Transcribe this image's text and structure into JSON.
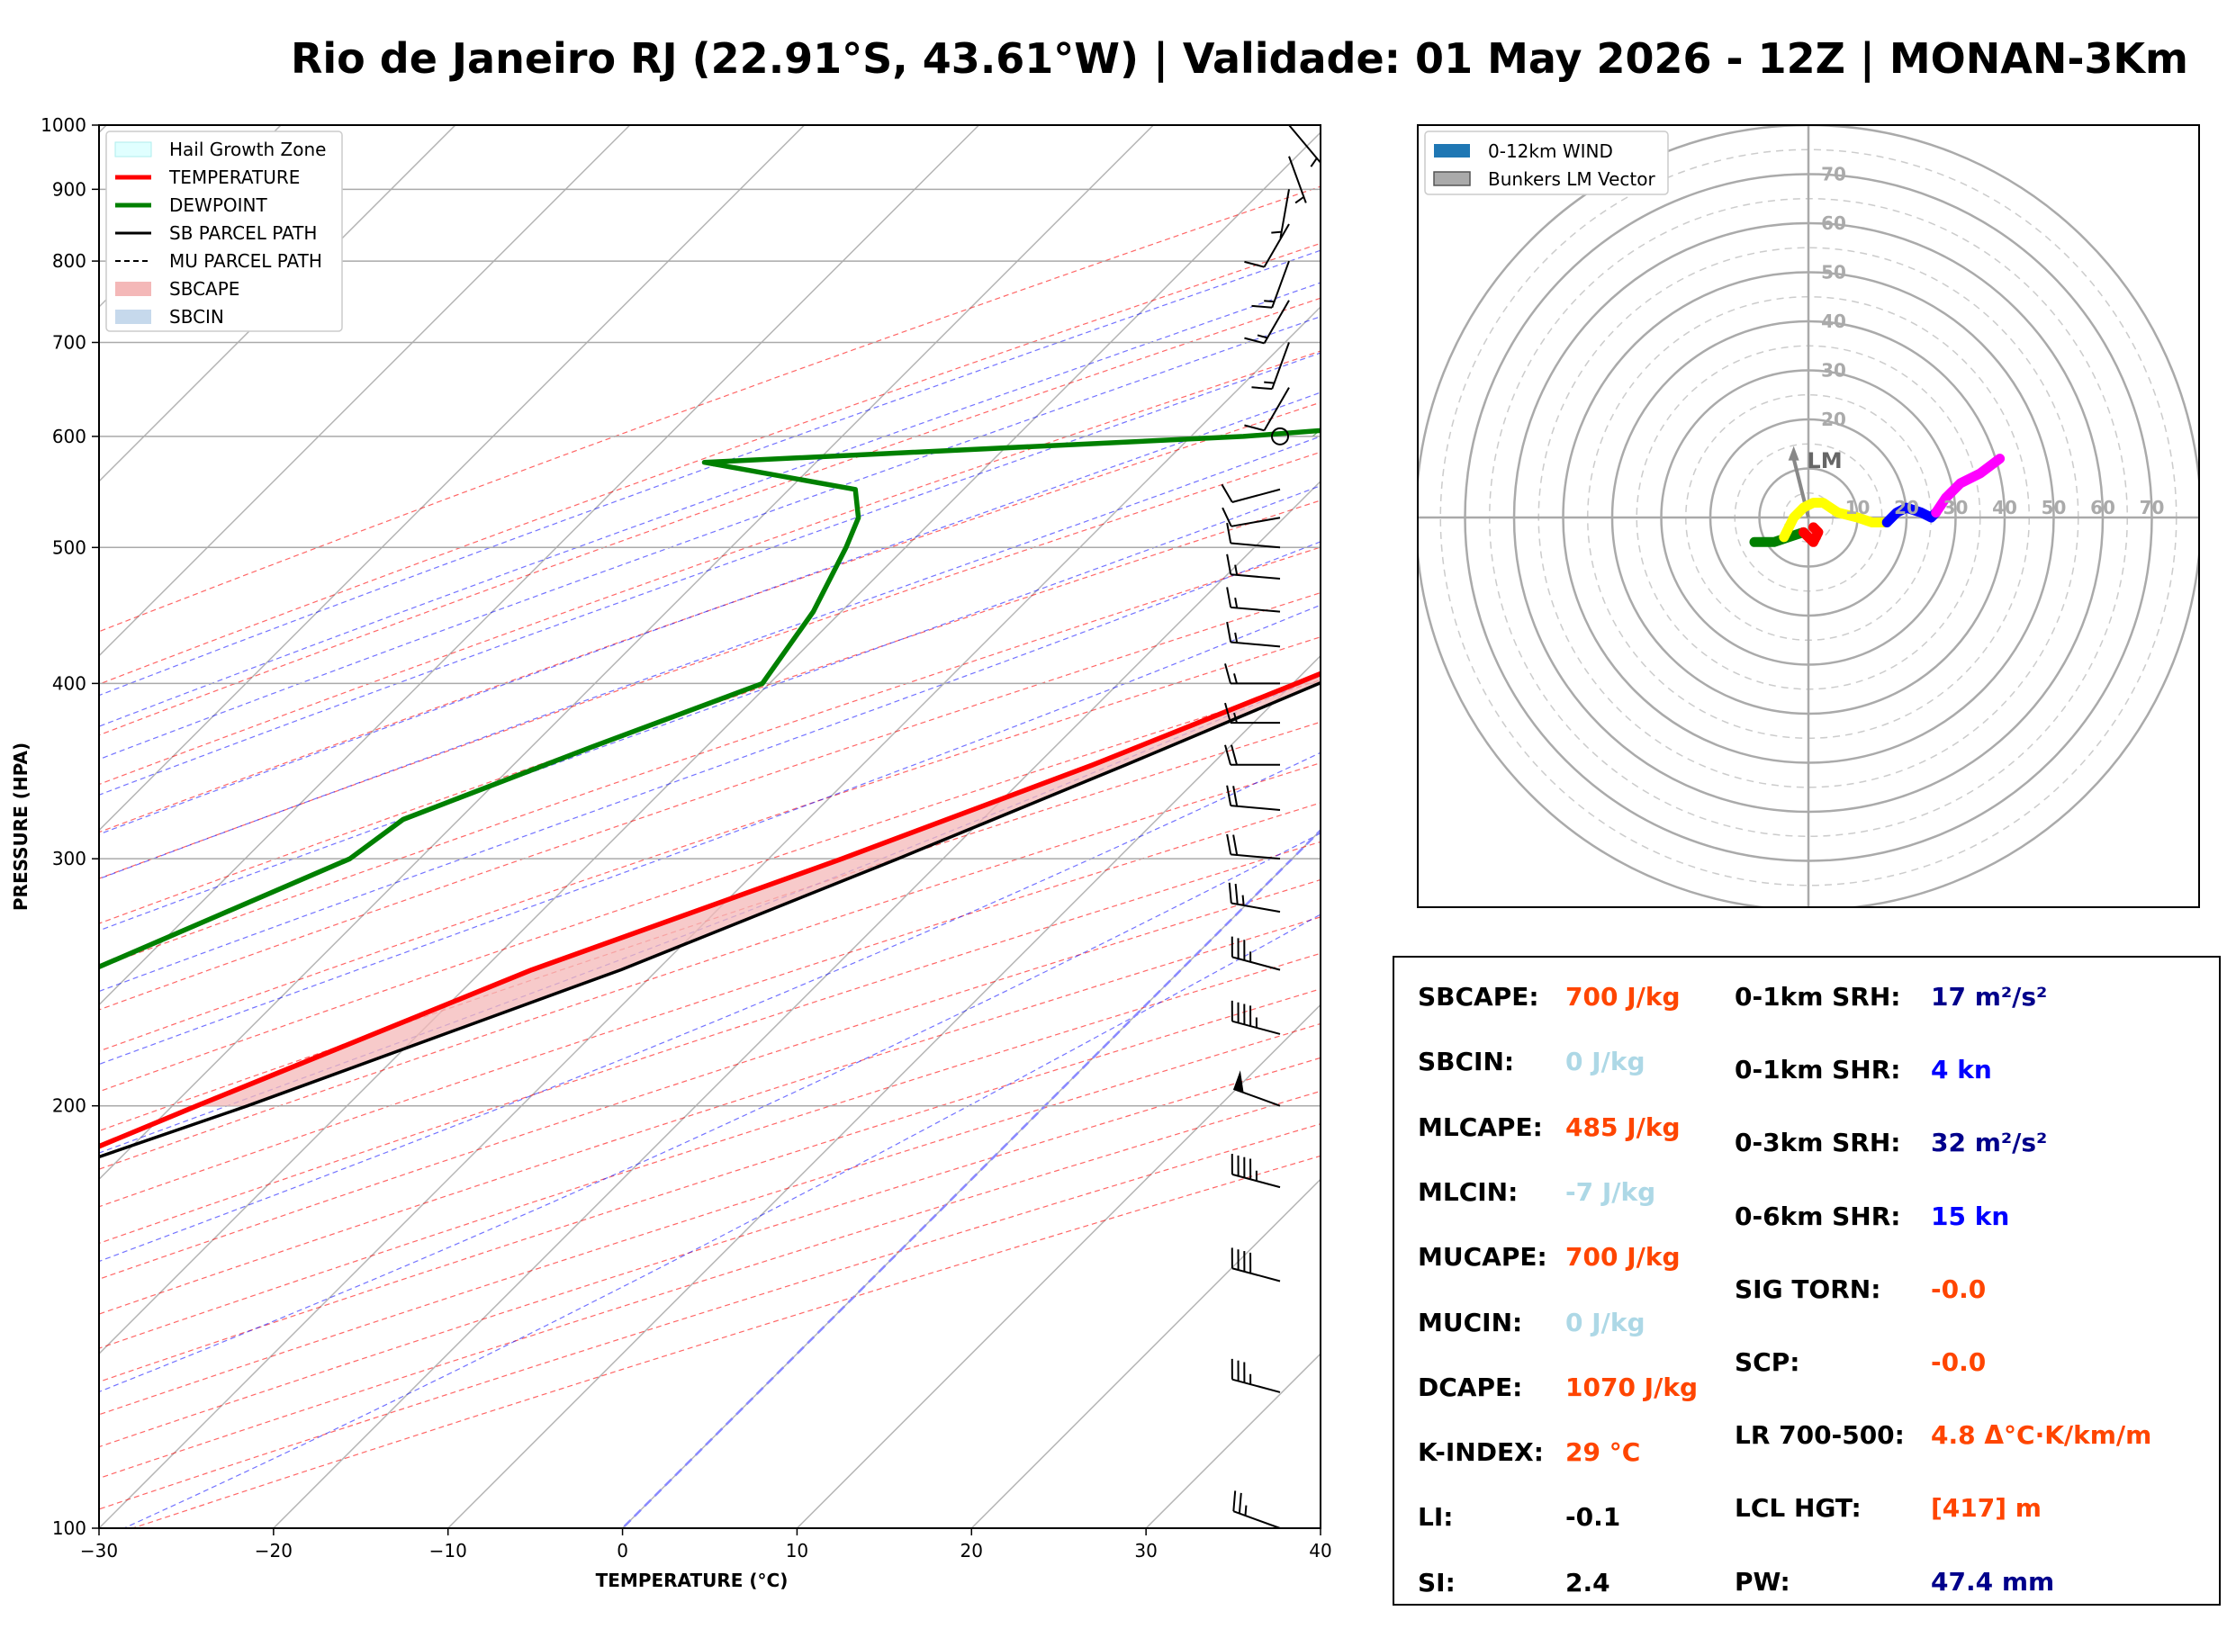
{
  "title": "Rio de Janeiro RJ (22.91°S, 43.61°W) | Validade: 01 May 2026 - 12Z | MONAN-3Km",
  "colors": {
    "temperature": "#ff0000",
    "dewpoint": "#008000",
    "parcel": "#000000",
    "sbcape": "#f4b8b8",
    "hail": "#e0ffff",
    "dry_adiabat": "#ff0000",
    "moist_adiabat": "#0000ff",
    "mixing_ratio": "#008000",
    "value_red": "#ff4500",
    "value_lightblue": "#add8e6",
    "value_navy": "#00008b",
    "value_blue": "#0000ff",
    "value_black": "#000000",
    "hodo_green": "#008000",
    "hodo_red": "#ff0000",
    "hodo_yellow": "#ffff00",
    "hodo_blue": "#0000ff",
    "hodo_magenta": "#ff00ff"
  },
  "chart_data": [
    {
      "type": "line",
      "name": "skew-t",
      "xlabel": "TEMPERATURE (°C)",
      "ylabel": "PRESSURE (HPA)",
      "xlim": [
        -30,
        40
      ],
      "ylim": [
        1000,
        100
      ],
      "y_scale": "log",
      "skew": true,
      "x_ticks": [
        -30,
        -20,
        -10,
        0,
        10,
        20,
        30,
        40
      ],
      "x_tick_labels": [
        "−30",
        "−20",
        "−10",
        "0",
        "10",
        "20",
        "30",
        "40"
      ],
      "y_ticks": [
        1000,
        900,
        800,
        700,
        600,
        500,
        400,
        300,
        200,
        100
      ],
      "y_tick_labels": [
        "1000",
        "900",
        "800",
        "700",
        "600",
        "500",
        "400",
        "300",
        "200",
        "100"
      ],
      "legend_position": "top-left",
      "legend": [
        "Hail Growth Zone",
        "TEMPERATURE",
        "DEWPOINT",
        "SB PARCEL PATH",
        "MU PARCEL PATH",
        "SBCAPE",
        "SBCIN"
      ],
      "hail_growth_zone": {
        "p_top": 390,
        "p_bottom": 545,
        "x_left": -0.5,
        "x_right": 20
      },
      "series": [
        {
          "name": "TEMPERATURE",
          "pressure": [
            1000,
            975,
            950,
            925,
            900,
            850,
            800,
            750,
            700,
            650,
            625,
            600,
            550,
            500,
            450,
            400,
            350,
            300,
            250,
            200,
            175,
            150,
            125,
            100
          ],
          "temperature": [
            24.4,
            22.1,
            22.4,
            21.5,
            20.6,
            18.8,
            17.2,
            15.4,
            13.4,
            10.2,
            8.8,
            8.9,
            5.8,
            1.6,
            -3.8,
            -9.8,
            -16.8,
            -25.8,
            -37.2,
            -48.6,
            -55.2,
            -61.8,
            -68.8,
            -75.7
          ]
        },
        {
          "name": "DEWPOINT",
          "pressure": [
            1000,
            975,
            950,
            925,
            900,
            870,
            850,
            800,
            770,
            750,
            700,
            680,
            650,
            600,
            575,
            550,
            525,
            500,
            450,
            400,
            360,
            320,
            300,
            250,
            200,
            180,
            150,
            125,
            100
          ],
          "temperature": [
            22.2,
            19.6,
            19.2,
            18.6,
            17.8,
            17.4,
            16.2,
            12.8,
            11.0,
            9.8,
            7.2,
            6.6,
            7.0,
            -27.0,
            -56.4,
            -46.2,
            -44.4,
            -43.4,
            -41.6,
            -40.4,
            -46.6,
            -53.2,
            -54.0,
            -62.4,
            -75.6,
            -83.4,
            -93.0,
            -103.0,
            -116.0
          ]
        },
        {
          "name": "SB PARCEL PATH",
          "pressure": [
            1000,
            950,
            900,
            850,
            800,
            750,
            700,
            650,
            600,
            550,
            500,
            450,
            400,
            350,
            300,
            250,
            200,
            175,
            150,
            125,
            100
          ],
          "temperature": [
            24.4,
            23.2,
            21.6,
            19.9,
            18.1,
            16.1,
            14.0,
            11.6,
            8.9,
            5.6,
            1.6,
            -3.1,
            -8.5,
            -14.9,
            -22.6,
            -32.1,
            -45.7,
            -54.6,
            -65.0,
            -77.8,
            -93.7
          ]
        }
      ],
      "wind_barbs": {
        "pressure": [
          100,
          125,
          150,
          175,
          200,
          225,
          250,
          275,
          300,
          325,
          350,
          375,
          400,
          425,
          450,
          475,
          500,
          525,
          550,
          600,
          650,
          700,
          750,
          800,
          850,
          900,
          950,
          1000
        ],
        "speed_kn": [
          25,
          35,
          40,
          45,
          50,
          45,
          35,
          25,
          20,
          20,
          20,
          15,
          15,
          15,
          15,
          15,
          10,
          10,
          10,
          0,
          10,
          15,
          15,
          15,
          10,
          5,
          5,
          5
        ],
        "direction_deg": [
          290,
          285,
          285,
          285,
          290,
          285,
          285,
          280,
          275,
          275,
          270,
          270,
          270,
          275,
          275,
          275,
          275,
          260,
          255,
          0,
          210,
          200,
          210,
          200,
          210,
          190,
          160,
          140
        ]
      }
    },
    {
      "type": "line",
      "name": "hodograph",
      "legend_position": "top-left",
      "legend": [
        "0-12km WIND",
        "Bunkers LM Vector"
      ],
      "ring_max": 80,
      "ring_labels": [
        "10",
        "20",
        "30",
        "40",
        "50",
        "60",
        "70"
      ],
      "vertical_ring_labels": [
        "20",
        "30",
        "40",
        "50",
        "60",
        "70"
      ],
      "lm_label": "LM",
      "lm_vector": {
        "u": -3,
        "v": 12
      },
      "series": [
        {
          "color_key": "hodo_green",
          "u": [
            -11,
            -7,
            -4,
            -1
          ],
          "v": [
            -5,
            -5,
            -4,
            -3
          ]
        },
        {
          "color_key": "hodo_red",
          "u": [
            -1,
            0,
            1,
            2,
            1
          ],
          "v": [
            -3,
            -4,
            -5,
            -3,
            -2
          ]
        },
        {
          "color_key": "hodo_yellow",
          "u": [
            -5,
            -3,
            -1,
            1,
            3,
            6,
            10,
            13,
            16
          ],
          "v": [
            -4,
            0,
            2,
            3,
            3,
            1,
            0,
            -1,
            -1
          ]
        },
        {
          "color_key": "hodo_blue",
          "u": [
            16,
            18,
            20,
            23,
            25,
            26
          ],
          "v": [
            -1,
            1,
            2,
            1,
            0,
            1
          ]
        },
        {
          "color_key": "hodo_magenta",
          "u": [
            26,
            28,
            31,
            35,
            39
          ],
          "v": [
            1,
            4,
            7,
            9,
            12
          ]
        }
      ]
    }
  ],
  "stats": [
    {
      "label": "SBCAPE:",
      "value": "700 J/kg",
      "color": "#ff4500"
    },
    {
      "label": "SBCIN:",
      "value": "0 J/kg",
      "color": "#add8e6"
    },
    {
      "label": "MLCAPE:",
      "value": "485 J/kg",
      "color": "#ff4500"
    },
    {
      "label": "MLCIN:",
      "value": "-7 J/kg",
      "color": "#add8e6"
    },
    {
      "label": "MUCAPE:",
      "value": "700 J/kg",
      "color": "#ff4500"
    },
    {
      "label": "MUCIN:",
      "value": "0 J/kg",
      "color": "#add8e6"
    },
    {
      "label": "DCAPE:",
      "value": "1070 J/kg",
      "color": "#ff4500"
    },
    {
      "label": "K-INDEX:",
      "value": "29 °C",
      "color": "#ff4500"
    },
    {
      "label": "LI:",
      "value": "-0.1",
      "color": "#000000"
    },
    {
      "label": "SI:",
      "value": "2.4",
      "color": "#000000"
    }
  ],
  "stats2": [
    {
      "label": "0-1km SRH:",
      "value": "17 m²/s²",
      "color": "#00008b"
    },
    {
      "label": "0-1km SHR:",
      "value": "4 kn",
      "color": "#0000ff"
    },
    {
      "label": "0-3km SRH:",
      "value": "32 m²/s²",
      "color": "#00008b"
    },
    {
      "label": "0-6km SHR:",
      "value": "15 kn",
      "color": "#0000ff"
    },
    {
      "label": "SIG TORN:",
      "value": "-0.0",
      "color": "#ff4500"
    },
    {
      "label": "SCP:",
      "value": "-0.0",
      "color": "#ff4500"
    },
    {
      "label": "LR 700-500:",
      "value": "4.8 Δ°C·K/km/m",
      "color": "#ff4500"
    },
    {
      "label": "LCL HGT:",
      "value": "[417] m",
      "color": "#ff4500"
    },
    {
      "label": "PW:",
      "value": "47.4 mm",
      "color": "#00008b"
    }
  ]
}
